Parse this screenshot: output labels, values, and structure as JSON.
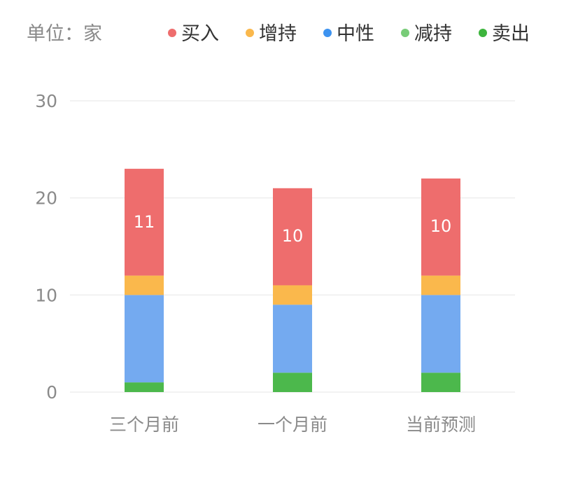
{
  "unit_label": "单位：家",
  "colors": {
    "buy": "#ee6d6d",
    "overweight": "#fab84c",
    "neutral": "#74aaf0",
    "reduce": "#6cc36c",
    "sell": "#4cb84c",
    "legend_neutral_dot": "#3d93f0",
    "legend_reduce_dot": "#78cc78",
    "legend_sell_dot": "#3db53d"
  },
  "chart_data": {
    "type": "bar",
    "stacked": true,
    "categories": [
      "三个月前",
      "一个月前",
      "当前预测"
    ],
    "series": [
      {
        "name": "买入",
        "color_key": "buy",
        "legend_color_key": "buy",
        "values": [
          11,
          10,
          10
        ]
      },
      {
        "name": "增持",
        "color_key": "overweight",
        "legend_color_key": "overweight",
        "values": [
          2,
          2,
          2
        ]
      },
      {
        "name": "中性",
        "color_key": "neutral",
        "legend_color_key": "legend_neutral_dot",
        "values": [
          9,
          7,
          8
        ]
      },
      {
        "name": "减持",
        "color_key": "reduce",
        "legend_color_key": "legend_reduce_dot",
        "values": [
          0,
          0,
          0
        ]
      },
      {
        "name": "卖出",
        "color_key": "sell",
        "legend_color_key": "legend_sell_dot",
        "values": [
          1,
          2,
          2
        ]
      }
    ],
    "data_labels": [
      {
        "series": "买入",
        "values": [
          "11",
          "10",
          "10"
        ]
      }
    ],
    "ylim": [
      0,
      30
    ],
    "yticks": [
      0,
      10,
      20,
      30
    ],
    "grid": true,
    "legend_position": "top-right"
  }
}
